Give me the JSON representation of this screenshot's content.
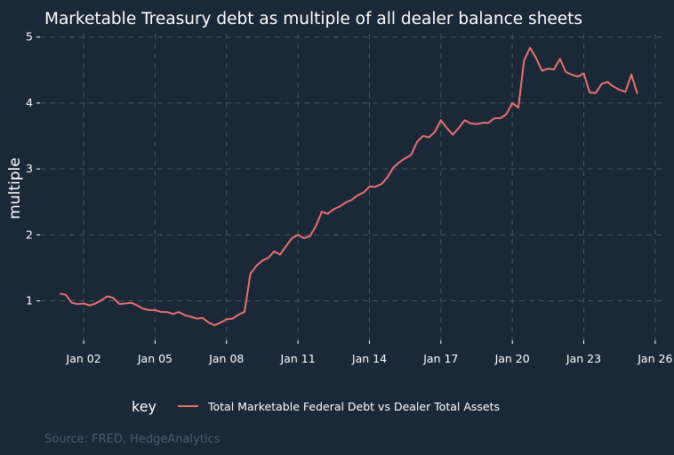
{
  "chart_data": {
    "type": "line",
    "title": "Marketable Treasury debt as multiple of all dealer balance sheets",
    "xlabel": "",
    "ylabel": "multiple",
    "x_tick_labels": [
      "Jan 02",
      "Jan 05",
      "Jan 08",
      "Jan 11",
      "Jan 14",
      "Jan 17",
      "Jan 20",
      "Jan 23",
      "Jan 26"
    ],
    "x_tick_dates": [
      "2002-01",
      "2005-01",
      "2008-01",
      "2011-01",
      "2014-01",
      "2017-01",
      "2020-01",
      "2023-01",
      "2026-01"
    ],
    "y_ticks": [
      1,
      2,
      3,
      4,
      5
    ],
    "xlim": [
      "2000-03",
      "2026-06"
    ],
    "ylim": [
      0.4,
      5.05
    ],
    "grid": true,
    "legend_title": "key",
    "legend_position": "bottom",
    "series": [
      {
        "name": "Total Marketable Federal Debt vs Dealer Total Assets",
        "color": "#e8716f",
        "points": [
          [
            "2001-01",
            1.11
          ],
          [
            "2001-04",
            1.09
          ],
          [
            "2001-07",
            0.97
          ],
          [
            "2001-10",
            0.95
          ],
          [
            "2002-01",
            0.96
          ],
          [
            "2002-04",
            0.93
          ],
          [
            "2002-07",
            0.96
          ],
          [
            "2002-10",
            1.01
          ],
          [
            "2003-01",
            1.07
          ],
          [
            "2003-04",
            1.04
          ],
          [
            "2003-07",
            0.95
          ],
          [
            "2003-10",
            0.96
          ],
          [
            "2004-01",
            0.97
          ],
          [
            "2004-04",
            0.93
          ],
          [
            "2004-07",
            0.88
          ],
          [
            "2004-10",
            0.86
          ],
          [
            "2005-01",
            0.86
          ],
          [
            "2005-04",
            0.83
          ],
          [
            "2005-07",
            0.83
          ],
          [
            "2005-10",
            0.8
          ],
          [
            "2006-01",
            0.83
          ],
          [
            "2006-04",
            0.78
          ],
          [
            "2006-07",
            0.76
          ],
          [
            "2006-10",
            0.73
          ],
          [
            "2007-01",
            0.74
          ],
          [
            "2007-04",
            0.67
          ],
          [
            "2007-07",
            0.63
          ],
          [
            "2007-10",
            0.67
          ],
          [
            "2008-01",
            0.72
          ],
          [
            "2008-04",
            0.73
          ],
          [
            "2008-07",
            0.79
          ],
          [
            "2008-10",
            0.83
          ],
          [
            "2009-01",
            1.41
          ],
          [
            "2009-04",
            1.53
          ],
          [
            "2009-07",
            1.61
          ],
          [
            "2009-10",
            1.65
          ],
          [
            "2010-01",
            1.75
          ],
          [
            "2010-04",
            1.7
          ],
          [
            "2010-07",
            1.83
          ],
          [
            "2010-10",
            1.95
          ],
          [
            "2011-01",
            2.0
          ],
          [
            "2011-04",
            1.95
          ],
          [
            "2011-07",
            1.98
          ],
          [
            "2011-10",
            2.13
          ],
          [
            "2012-01",
            2.35
          ],
          [
            "2012-04",
            2.32
          ],
          [
            "2012-07",
            2.39
          ],
          [
            "2012-10",
            2.43
          ],
          [
            "2013-01",
            2.49
          ],
          [
            "2013-04",
            2.53
          ],
          [
            "2013-07",
            2.6
          ],
          [
            "2013-10",
            2.64
          ],
          [
            "2014-01",
            2.73
          ],
          [
            "2014-04",
            2.73
          ],
          [
            "2014-07",
            2.77
          ],
          [
            "2014-10",
            2.87
          ],
          [
            "2015-01",
            3.02
          ],
          [
            "2015-04",
            3.1
          ],
          [
            "2015-07",
            3.16
          ],
          [
            "2015-10",
            3.21
          ],
          [
            "2016-01",
            3.41
          ],
          [
            "2016-04",
            3.5
          ],
          [
            "2016-07",
            3.48
          ],
          [
            "2016-10",
            3.56
          ],
          [
            "2017-01",
            3.74
          ],
          [
            "2017-04",
            3.62
          ],
          [
            "2017-07",
            3.52
          ],
          [
            "2017-10",
            3.62
          ],
          [
            "2018-01",
            3.74
          ],
          [
            "2018-04",
            3.69
          ],
          [
            "2018-07",
            3.68
          ],
          [
            "2018-10",
            3.7
          ],
          [
            "2019-01",
            3.7
          ],
          [
            "2019-04",
            3.77
          ],
          [
            "2019-07",
            3.77
          ],
          [
            "2019-10",
            3.83
          ],
          [
            "2020-01",
            4.0
          ],
          [
            "2020-04",
            3.93
          ],
          [
            "2020-07",
            4.65
          ],
          [
            "2020-10",
            4.84
          ],
          [
            "2021-01",
            4.68
          ],
          [
            "2021-04",
            4.49
          ],
          [
            "2021-07",
            4.52
          ],
          [
            "2021-10",
            4.51
          ],
          [
            "2022-01",
            4.67
          ],
          [
            "2022-04",
            4.47
          ],
          [
            "2022-07",
            4.43
          ],
          [
            "2022-10",
            4.4
          ],
          [
            "2023-01",
            4.45
          ],
          [
            "2023-04",
            4.16
          ],
          [
            "2023-07",
            4.15
          ],
          [
            "2023-10",
            4.29
          ],
          [
            "2024-01",
            4.32
          ],
          [
            "2024-04",
            4.25
          ],
          [
            "2024-07",
            4.2
          ],
          [
            "2024-10",
            4.17
          ],
          [
            "2025-01",
            4.43
          ],
          [
            "2025-04",
            4.14
          ]
        ]
      }
    ],
    "caption": "Source: FRED, HedgeAnalytics"
  }
}
